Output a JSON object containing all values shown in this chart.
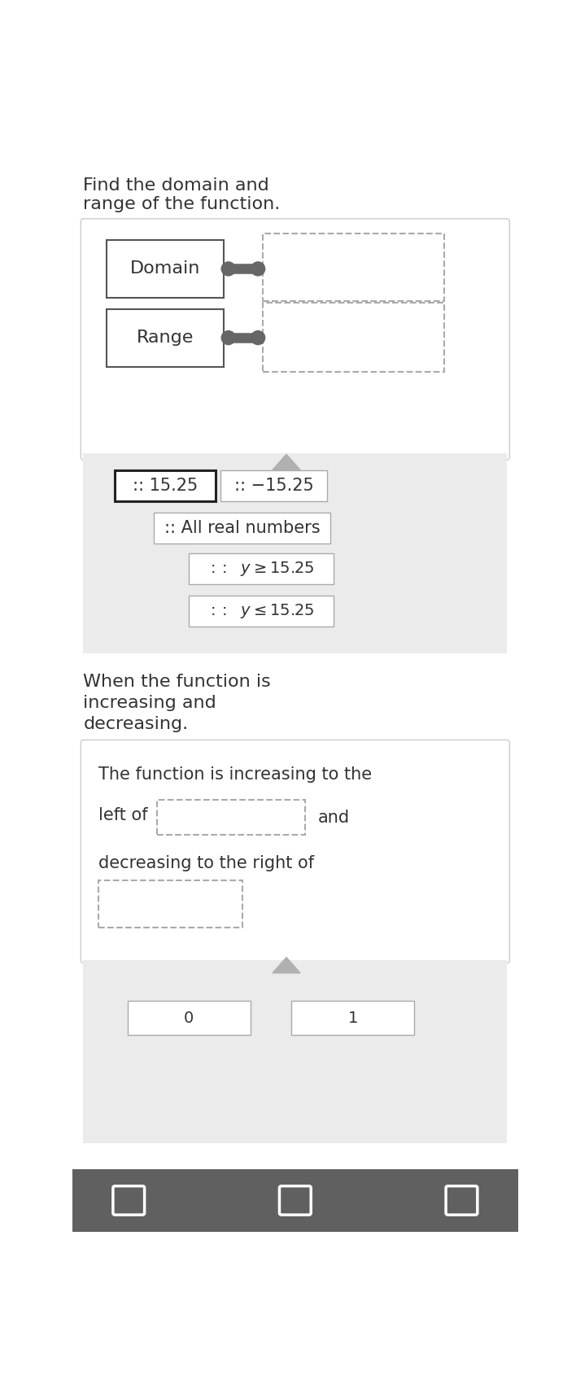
{
  "title_line1": "Find the domain and",
  "title_line2": "range of the function.",
  "domain_label": "Domain",
  "range_label": "Range",
  "opt1": ":: 15.25",
  "opt2": ":: −15.25",
  "opt3": ":: All real numbers",
  "opt4_pre": ":: ",
  "opt4_math": "y≥ 15.25",
  "opt5_pre": ":: ",
  "opt5_math": "y≤ 15.25",
  "section2_line1": "When the function is",
  "section2_line2": "increasing and",
  "section2_line3": "decreasing.",
  "inc_text": "The function is increasing to the",
  "left_text": "left of",
  "and_text": "and",
  "dec_text": "decreasing to the right of",
  "bg_color": "#ebebeb",
  "white": "#ffffff",
  "light_border": "#cccccc",
  "dark_border": "#555555",
  "dashed_color": "#aaaaaa",
  "text_color": "#333333",
  "connector_color": "#666666",
  "toolbar_color": "#606060"
}
